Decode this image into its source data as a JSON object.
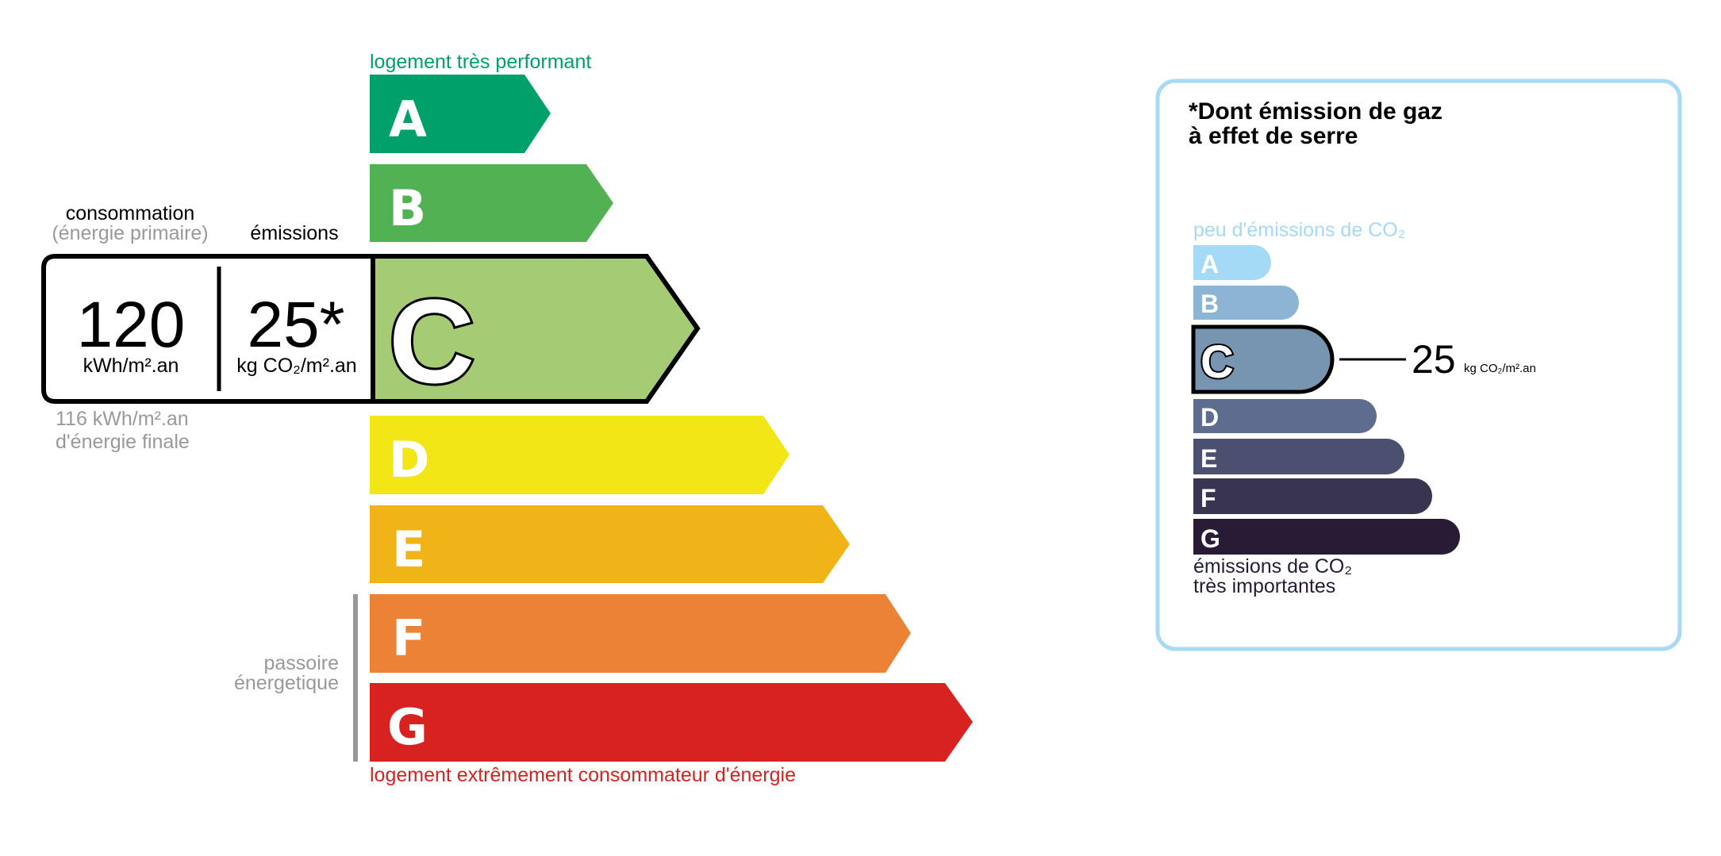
{
  "energy": {
    "top_label": "logement très performant",
    "bottom_label": "logement extrêmement consommateur d'énergie",
    "top_label_color": "#00a06b",
    "bottom_label_color": "#d7221f",
    "classes": [
      {
        "letter": "A",
        "color": "#00a06b"
      },
      {
        "letter": "B",
        "color": "#52b153"
      },
      {
        "letter": "C",
        "color": "#a5cc74"
      },
      {
        "letter": "D",
        "color": "#f2e617"
      },
      {
        "letter": "E",
        "color": "#f0b419"
      },
      {
        "letter": "F",
        "color": "#eb8235"
      },
      {
        "letter": "G",
        "color": "#d7221f"
      }
    ],
    "current_class": "C",
    "consumption_header": "consommation",
    "consumption_subheader": "(énergie primaire)",
    "emissions_header": "émissions",
    "consumption_value": "120",
    "consumption_unit": "kWh/m².an",
    "emissions_value": "25*",
    "emissions_unit": "kg CO₂/m².an",
    "final_energy_value": "116 kWh/m².an",
    "final_energy_label": "d'énergie finale",
    "passoire_line1": "passoire",
    "passoire_line2": "énergetique"
  },
  "ges": {
    "title_line1": "*Dont émission de gaz",
    "title_line2": "à effet de serre",
    "top_label": "peu d'émissions de CO₂",
    "bottom_label_line1": "émissions de CO₂",
    "bottom_label_line2": "très importantes",
    "border_color": "#a6daf5",
    "classes": [
      {
        "letter": "A",
        "color": "#a4daf6"
      },
      {
        "letter": "B",
        "color": "#8cb4d3"
      },
      {
        "letter": "C",
        "color": "#7794b1"
      },
      {
        "letter": "D",
        "color": "#5e6d8f"
      },
      {
        "letter": "E",
        "color": "#4c5070"
      },
      {
        "letter": "F",
        "color": "#393551"
      },
      {
        "letter": "G",
        "color": "#281b35"
      }
    ],
    "current_class": "C",
    "value": "25",
    "unit": "kg CO₂/m².an"
  }
}
